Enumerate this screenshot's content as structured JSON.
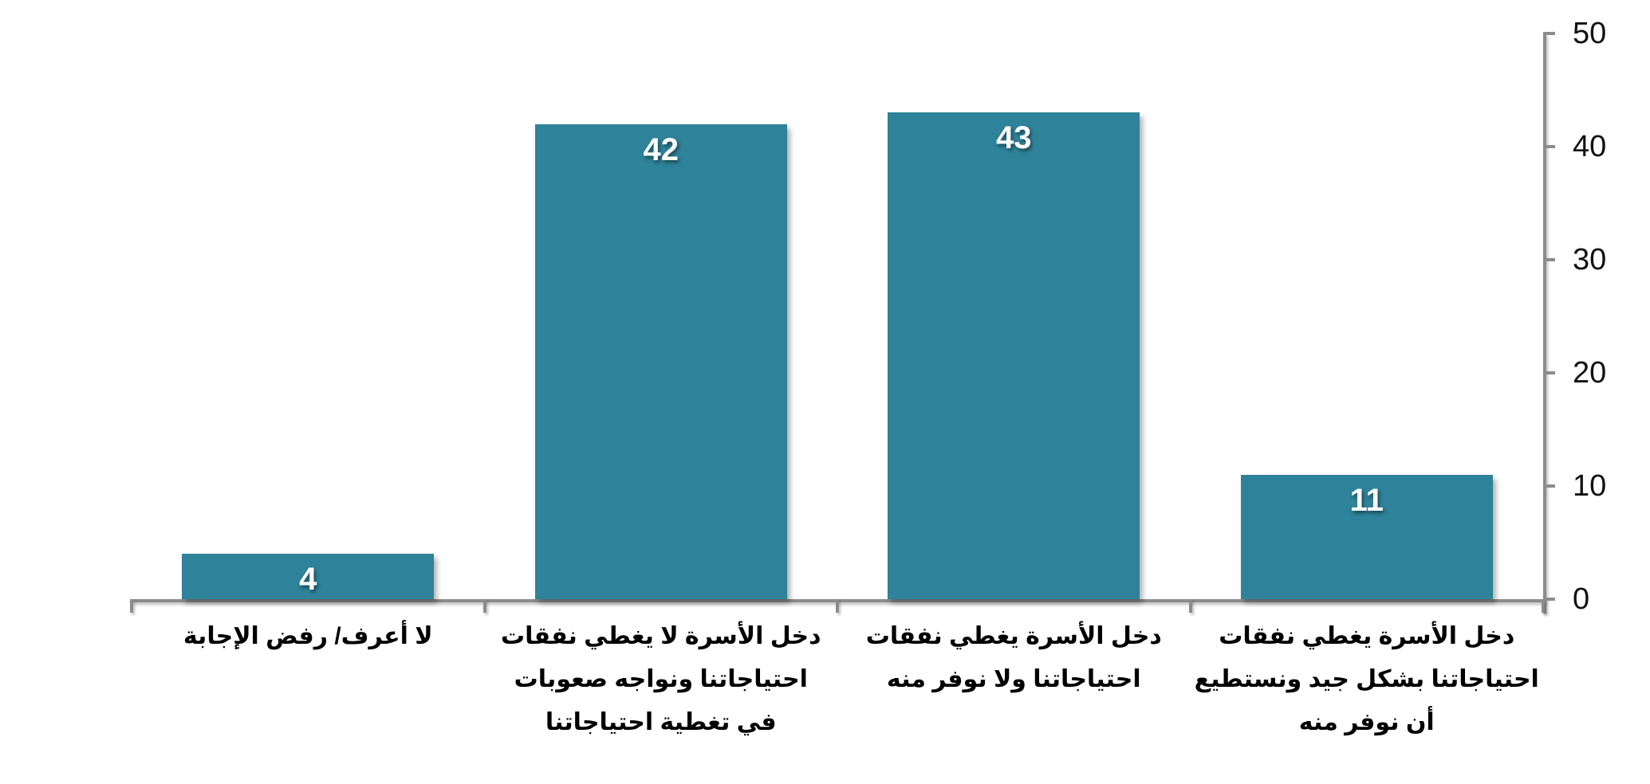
{
  "chart_data": {
    "type": "bar",
    "title": "",
    "xlabel": "",
    "ylabel": "",
    "direction": "rtl",
    "grid": false,
    "legend": false,
    "y_axis_side": "right",
    "ylim": [
      0,
      50
    ],
    "yticks": [
      "0",
      "10",
      "20",
      "30",
      "40",
      "50"
    ],
    "ytick_values": [
      0,
      10,
      20,
      30,
      40,
      50
    ],
    "categories": [
      "لا أعرف/ رفض الإجابة",
      "دخل الأسرة لا يغطي نفقات\nاحتياجاتنا ونواجه صعوبات\nفي تغطية احتياجاتنا",
      "دخل الأسرة يغطي نفقات\nاحتياجاتنا ولا نوفر منه",
      "دخل الأسرة يغطي نفقات\nاحتياجاتنا بشكل جيد ونستطيع\nأن نوفر منه"
    ],
    "values": [
      4,
      42,
      43,
      11
    ],
    "data_labels": [
      "4",
      "42",
      "43",
      "11"
    ],
    "colors": {
      "bar": "#2E8299",
      "axis": "#8C8C8C",
      "data_label": "#FFFFFF",
      "tick_label": "#111111",
      "category_label": "#000000",
      "background": "#FFFFFF"
    }
  }
}
